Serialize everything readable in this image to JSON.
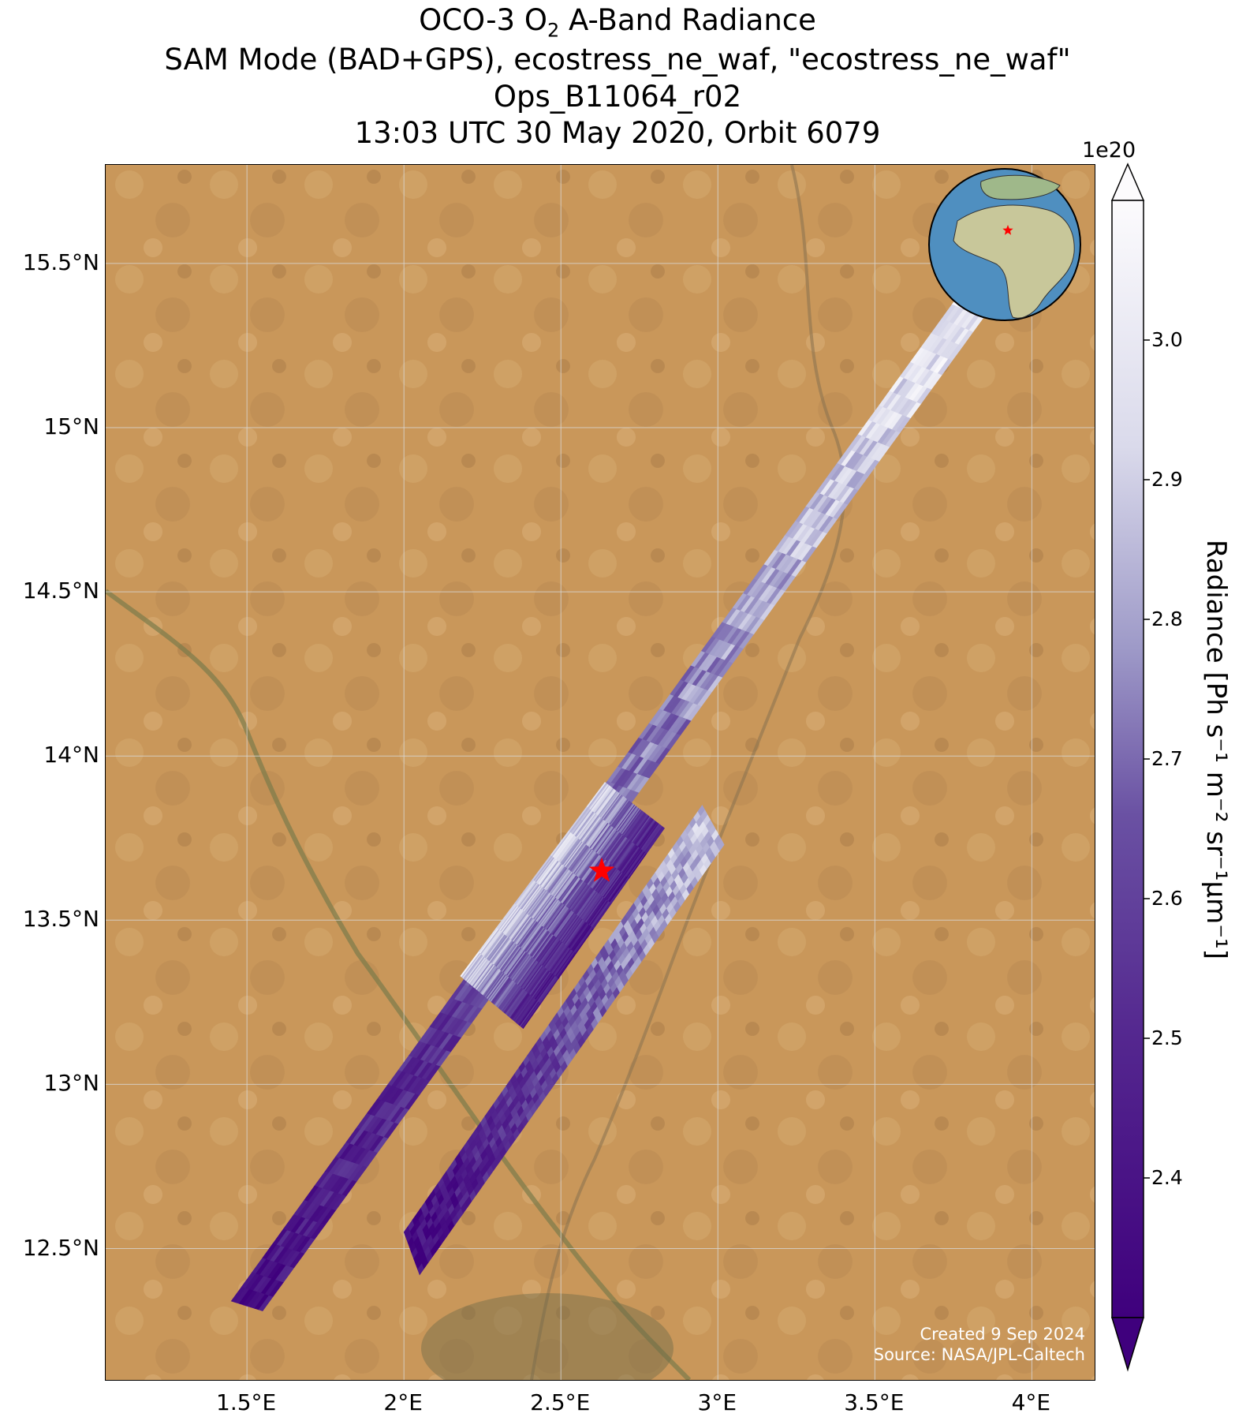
{
  "title": {
    "line1_prefix": "OCO-3 O",
    "line1_sub": "2",
    "line1_suffix": " A-Band Radiance",
    "line2": "SAM Mode (BAD+GPS), ecostress_ne_waf, \"ecostress_ne_waf\"",
    "line3": "Ops_B11064_r02",
    "line4": "13:03 UTC 30 May 2020, Orbit 6079"
  },
  "map": {
    "lon_range": [
      1.05,
      4.2
    ],
    "lat_range": [
      12.1,
      15.8
    ],
    "lat_ticks": [
      {
        "value": 15.5,
        "label": "15.5°N"
      },
      {
        "value": 15.0,
        "label": "15°N"
      },
      {
        "value": 14.5,
        "label": "14.5°N"
      },
      {
        "value": 14.0,
        "label": "14°N"
      },
      {
        "value": 13.5,
        "label": "13.5°N"
      },
      {
        "value": 13.0,
        "label": "13°N"
      },
      {
        "value": 12.5,
        "label": "12.5°N"
      }
    ],
    "lon_ticks": [
      {
        "value": 1.5,
        "label": "1.5°E"
      },
      {
        "value": 2.0,
        "label": "2°E"
      },
      {
        "value": 2.5,
        "label": "2.5°E"
      },
      {
        "value": 3.0,
        "label": "3°E"
      },
      {
        "value": 3.5,
        "label": "3.5°E"
      },
      {
        "value": 4.0,
        "label": "4°E"
      }
    ],
    "target_marker": {
      "lon": 2.63,
      "lat": 13.65,
      "color": "#ff0000"
    },
    "background_color": "#c79a5c",
    "grid": true
  },
  "swaths": [
    {
      "name": "upper-left",
      "radiance_start": 2.38,
      "radiance_end": 3.02,
      "corners": [
        [
          1.45,
          12.34
        ],
        [
          1.55,
          12.31
        ],
        [
          3.88,
          15.38
        ],
        [
          3.78,
          15.42
        ]
      ]
    },
    {
      "name": "middle-upper",
      "radiance_start": 2.42,
      "radiance_end": 2.95,
      "corners": [
        [
          2.38,
          13.17
        ],
        [
          2.83,
          13.78
        ],
        [
          2.64,
          13.92
        ],
        [
          2.18,
          13.33
        ]
      ]
    },
    {
      "name": "lower-right",
      "radiance_start": 2.35,
      "radiance_end": 2.9,
      "corners": [
        [
          2.0,
          12.55
        ],
        [
          2.05,
          12.42
        ],
        [
          3.02,
          13.73
        ],
        [
          2.95,
          13.85
        ]
      ]
    }
  ],
  "colorbar": {
    "multiplier": "1e20",
    "label": "Radiance [Ph s⁻¹ m⁻² sr⁻¹μm⁻¹]",
    "min": 2.3,
    "max": 3.1,
    "ticks": [
      {
        "value": 3.0,
        "label": "3.0"
      },
      {
        "value": 2.9,
        "label": "2.9"
      },
      {
        "value": 2.8,
        "label": "2.8"
      },
      {
        "value": 2.7,
        "label": "2.7"
      },
      {
        "value": 2.6,
        "label": "2.6"
      },
      {
        "value": 2.5,
        "label": "2.5"
      },
      {
        "value": 2.4,
        "label": "2.4"
      }
    ],
    "color_low": "#3f007d",
    "color_high": "#fcfbfd",
    "extend": "both"
  },
  "credits": {
    "created": "Created 9 Sep 2024",
    "source": "Source: NASA/JPL-Caltech"
  },
  "globe_inset": {
    "ocean_color": "#4f8fc0",
    "land_color": "#c8c79a",
    "marker_color": "#ff0000"
  }
}
